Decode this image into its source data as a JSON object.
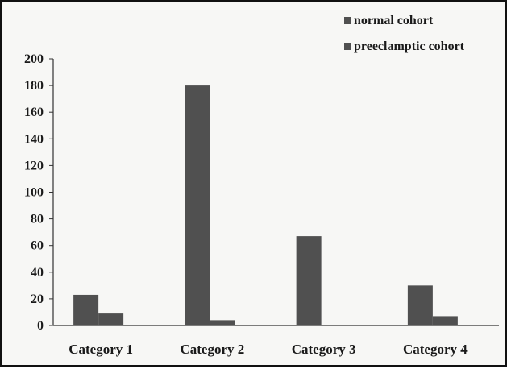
{
  "chart_data": {
    "type": "bar",
    "title": "",
    "xlabel": "",
    "ylabel": "",
    "categories": [
      "Category 1",
      "Category 2",
      "Category 3",
      "Category 4"
    ],
    "series": [
      {
        "name": "normal cohort",
        "values": [
          23,
          180,
          67,
          30
        ]
      },
      {
        "name": "preeclamptic cohort",
        "values": [
          9,
          4,
          0,
          7
        ]
      }
    ],
    "yticks": [
      "0",
      "20",
      "40",
      "60",
      "80",
      "100",
      "120",
      "140",
      "160",
      "180",
      "200"
    ],
    "ylim": [
      0,
      200
    ],
    "grid": false,
    "legend_position": "top-right",
    "colors": {
      "bars": "#505050",
      "axis": "#333333"
    }
  }
}
